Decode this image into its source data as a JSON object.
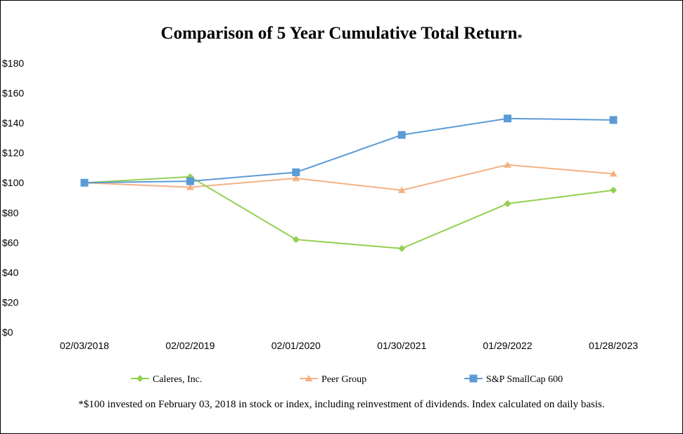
{
  "chart_data": {
    "type": "line",
    "title": "Comparison of 5 Year Cumulative Total Return",
    "title_mark": "*",
    "categories": [
      "02/03/2018",
      "02/02/2019",
      "02/01/2020",
      "01/30/2021",
      "01/29/2022",
      "01/28/2023"
    ],
    "series": [
      {
        "name": "Caleres, Inc.",
        "color": "#92d050",
        "marker": "diamond",
        "values": [
          100,
          104,
          62,
          56,
          86,
          95
        ]
      },
      {
        "name": "Peer Group",
        "color": "#f4b183",
        "marker": "triangle",
        "values": [
          100,
          97,
          103,
          95,
          112,
          106
        ]
      },
      {
        "name": "S&P SmallCap 600",
        "color": "#5b9bd5",
        "marker": "square",
        "values": [
          100,
          101,
          107,
          132,
          143,
          142
        ]
      }
    ],
    "y_ticks": [
      "$0",
      "$20",
      "$40",
      "$60",
      "$80",
      "$100",
      "$120",
      "$140",
      "$160",
      "$180"
    ],
    "ylim": [
      0,
      180
    ],
    "grid": false,
    "legend_position": "bottom",
    "footnote": "*$100 invested on February 03, 2018 in stock or index, including reinvestment of dividends. Index calculated on daily basis."
  }
}
